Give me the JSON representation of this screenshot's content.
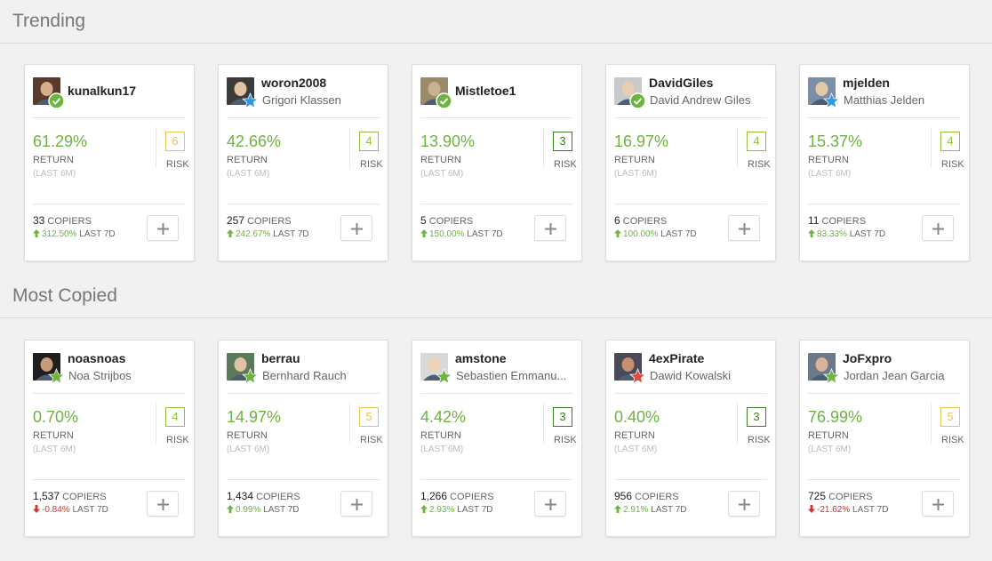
{
  "sections": [
    {
      "title": "Trending",
      "cards": [
        {
          "username": "kunalkun17",
          "fullname": "",
          "badge": "check",
          "return": "61.29%",
          "return_label": "RETURN",
          "return_period": "(LAST 6M)",
          "risk": "6",
          "risk_color": "#e5c45a",
          "risk_label": "RISK",
          "copiers": "33",
          "copiers_label": "COPIERS",
          "change": "312.50%",
          "change_dir": "up",
          "change_label": "LAST 7D"
        },
        {
          "username": "woron2008",
          "fullname": "Grigori Klassen",
          "badge": "star-blue",
          "return": "42.66%",
          "return_label": "RETURN",
          "return_period": "(LAST 6M)",
          "risk": "4",
          "risk_color": "#8fbf3b",
          "risk_label": "RISK",
          "copiers": "257",
          "copiers_label": "COPIERS",
          "change": "242.67%",
          "change_dir": "up",
          "change_label": "LAST 7D"
        },
        {
          "username": "Mistletoe1",
          "fullname": "",
          "badge": "check",
          "return": "13.90%",
          "return_label": "RETURN",
          "return_period": "(LAST 6M)",
          "risk": "3",
          "risk_color": "#3c7d2a",
          "risk_label": "RISK",
          "copiers": "5",
          "copiers_label": "COPIERS",
          "change": "150.00%",
          "change_dir": "up",
          "change_label": "LAST 7D"
        },
        {
          "username": "DavidGiles",
          "fullname": "David Andrew Giles",
          "badge": "check",
          "return": "16.97%",
          "return_label": "RETURN",
          "return_period": "(LAST 6M)",
          "risk": "4",
          "risk_color": "#8fbf3b",
          "risk_label": "RISK",
          "copiers": "6",
          "copiers_label": "COPIERS",
          "change": "100.00%",
          "change_dir": "up",
          "change_label": "LAST 7D"
        },
        {
          "username": "mjelden",
          "fullname": "Matthias Jelden",
          "badge": "star-blue",
          "return": "15.37%",
          "return_label": "RETURN",
          "return_period": "(LAST 6M)",
          "risk": "4",
          "risk_color": "#8fbf3b",
          "risk_label": "RISK",
          "copiers": "11",
          "copiers_label": "COPIERS",
          "change": "83.33%",
          "change_dir": "up",
          "change_label": "LAST 7D"
        }
      ]
    },
    {
      "title": "Most Copied",
      "cards": [
        {
          "username": "noasnoas",
          "fullname": "Noa Strijbos",
          "badge": "star-green",
          "return": "0.70%",
          "return_label": "RETURN",
          "return_period": "(LAST 6M)",
          "risk": "4",
          "risk_color": "#8fbf3b",
          "risk_label": "RISK",
          "copiers": "1,537",
          "copiers_label": "COPIERS",
          "change": "-0.84%",
          "change_dir": "down",
          "change_label": "LAST 7D"
        },
        {
          "username": "berrau",
          "fullname": "Bernhard Rauch",
          "badge": "star-green",
          "return": "14.97%",
          "return_label": "RETURN",
          "return_period": "(LAST 6M)",
          "risk": "5",
          "risk_color": "#e5c45a",
          "risk_label": "RISK",
          "copiers": "1,434",
          "copiers_label": "COPIERS",
          "change": "0.99%",
          "change_dir": "up",
          "change_label": "LAST 7D"
        },
        {
          "username": "amstone",
          "fullname": "Sebastien Emmanu...",
          "badge": "star-green",
          "return": "4.42%",
          "return_label": "RETURN",
          "return_period": "(LAST 6M)",
          "risk": "3",
          "risk_color": "#3c7d2a",
          "risk_label": "RISK",
          "copiers": "1,266",
          "copiers_label": "COPIERS",
          "change": "2.93%",
          "change_dir": "up",
          "change_label": "LAST 7D"
        },
        {
          "username": "4exPirate",
          "fullname": "Dawid Kowalski",
          "badge": "star-red",
          "return": "0.40%",
          "return_label": "RETURN",
          "return_period": "(LAST 6M)",
          "risk": "3",
          "risk_color": "#3c7d2a",
          "risk_label": "RISK",
          "copiers": "956",
          "copiers_label": "COPIERS",
          "change": "2.91%",
          "change_dir": "up",
          "change_label": "LAST 7D"
        },
        {
          "username": "JoFxpro",
          "fullname": "Jordan Jean Garcia",
          "badge": "star-green",
          "return": "76.99%",
          "return_label": "RETURN",
          "return_period": "(LAST 6M)",
          "risk": "5",
          "risk_color": "#e5c45a",
          "risk_label": "RISK",
          "copiers": "725",
          "copiers_label": "COPIERS",
          "change": "-21.62%",
          "change_dir": "down",
          "change_label": "LAST 7D"
        }
      ]
    }
  ]
}
